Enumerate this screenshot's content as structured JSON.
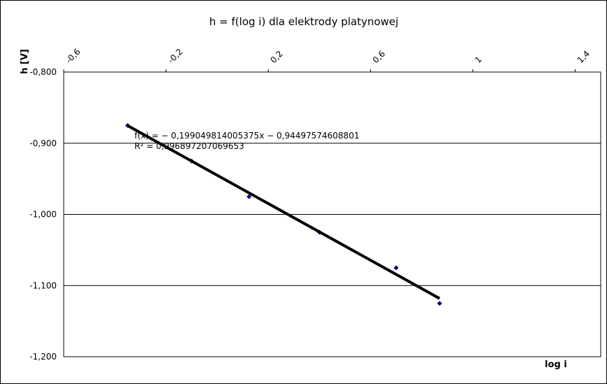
{
  "chart_data": {
    "type": "scatter",
    "title": "h = f(log i) dla elektrody platynowej",
    "x_label": "log i",
    "y_label": "h [V]",
    "series": [
      {
        "name": "h",
        "color": "#000080",
        "x": [
          -0.35,
          -0.1,
          0.125,
          0.4,
          0.7,
          0.87
        ],
        "values": [
          -0.875,
          -0.925,
          -0.975,
          -1.025,
          -1.075,
          -1.125
        ]
      }
    ],
    "trendline": {
      "slope": -0.199049814005375,
      "intercept": -0.94497574608801,
      "color": "#000000",
      "equation": "f(x) = − 0,199049814005375x − 0,94497574608801",
      "r2": "R² = 0,996897207069653"
    },
    "xlim": [
      -0.6,
      1.5
    ],
    "xticks": [
      {
        "value": -0.6,
        "label": "-0,6"
      },
      {
        "value": -0.2,
        "label": "-0,2"
      },
      {
        "value": 0.2,
        "label": "0,2"
      },
      {
        "value": 0.6,
        "label": "0,6"
      },
      1,
      {
        "value": 1.4,
        "label": "1,4"
      }
    ],
    "ylim": [
      -1.2,
      -0.8
    ],
    "yticks": [
      {
        "value": -1.2,
        "label": "-1,200"
      },
      {
        "value": -1.1,
        "label": "-1,100"
      },
      {
        "value": -1.0,
        "label": "-1,000"
      },
      {
        "value": -0.9,
        "label": "-0,900"
      },
      {
        "value": -0.8,
        "label": "-0,800"
      }
    ],
    "grid": true
  }
}
